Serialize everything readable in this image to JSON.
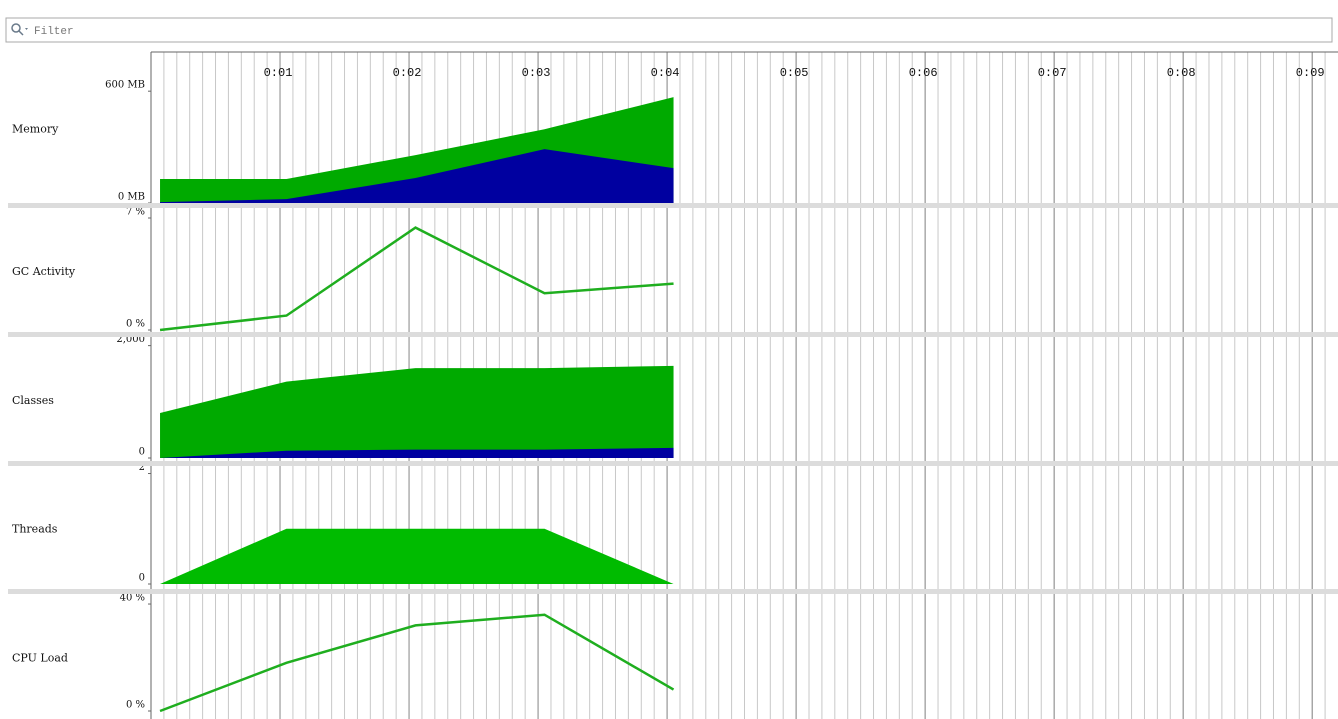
{
  "filter": {
    "placeholder": "Filter"
  },
  "timeline": {
    "xlim": [
      0,
      9.2
    ],
    "minor_step": 0.1,
    "ticks": [
      {
        "value": 1,
        "label": "0:01"
      },
      {
        "value": 2,
        "label": "0:02"
      },
      {
        "value": 3,
        "label": "0:03"
      },
      {
        "value": 4,
        "label": "0:04"
      },
      {
        "value": 5,
        "label": "0:05"
      },
      {
        "value": 6,
        "label": "0:06"
      },
      {
        "value": 7,
        "label": "0:07"
      },
      {
        "value": 8,
        "label": "0:08"
      },
      {
        "value": 9,
        "label": "0:09"
      }
    ],
    "x": [
      0.07,
      1.05,
      2.05,
      3.05,
      4.05
    ]
  },
  "panels": [
    {
      "name": "Memory",
      "type": "area",
      "ylim": [
        0,
        660
      ],
      "yticks": [
        {
          "value": 0,
          "label": "0 MB"
        },
        {
          "value": 600,
          "label": "600 MB"
        }
      ],
      "series": [
        {
          "color": "#00aa00",
          "values": [
            129,
            129,
            257,
            396,
            568
          ]
        },
        {
          "color": "#0000a0",
          "values": [
            5,
            21,
            134,
            289,
            187
          ]
        }
      ]
    },
    {
      "name": "GC Activity",
      "type": "line",
      "ylim": [
        0,
        7.5
      ],
      "yticks": [
        {
          "value": 0,
          "label": "0 %"
        },
        {
          "value": 7,
          "label": "7 %"
        }
      ],
      "series": [
        {
          "color": "#1fae1f",
          "values": [
            0,
            0.9,
            6.4,
            2.3,
            2.9
          ]
        }
      ]
    },
    {
      "name": "Classes",
      "type": "area",
      "ylim": [
        0,
        2100
      ],
      "yticks": [
        0,
        {
          "value": 2000,
          "label": "2,000"
        }
      ],
      "series": [
        {
          "color": "#00aa00",
          "values": [
            800,
            1360,
            1600,
            1600,
            1640
          ]
        },
        {
          "color": "#0000a0",
          "values": [
            0,
            130,
            150,
            150,
            180
          ]
        }
      ]
    },
    {
      "name": "Threads",
      "type": "area",
      "ylim": [
        0,
        2.1
      ],
      "yticks": [
        0,
        2
      ],
      "series": [
        {
          "color": "#00bb00",
          "values": [
            0,
            1,
            1,
            1,
            0
          ]
        }
      ]
    },
    {
      "name": "CPU Load",
      "type": "line",
      "ylim": [
        0,
        43
      ],
      "yticks": [
        {
          "value": 0,
          "label": "0 %"
        },
        {
          "value": 40,
          "label": "40 %"
        }
      ],
      "series": [
        {
          "color": "#1fae1f",
          "values": [
            0,
            18,
            32,
            36,
            8
          ]
        }
      ]
    }
  ]
}
